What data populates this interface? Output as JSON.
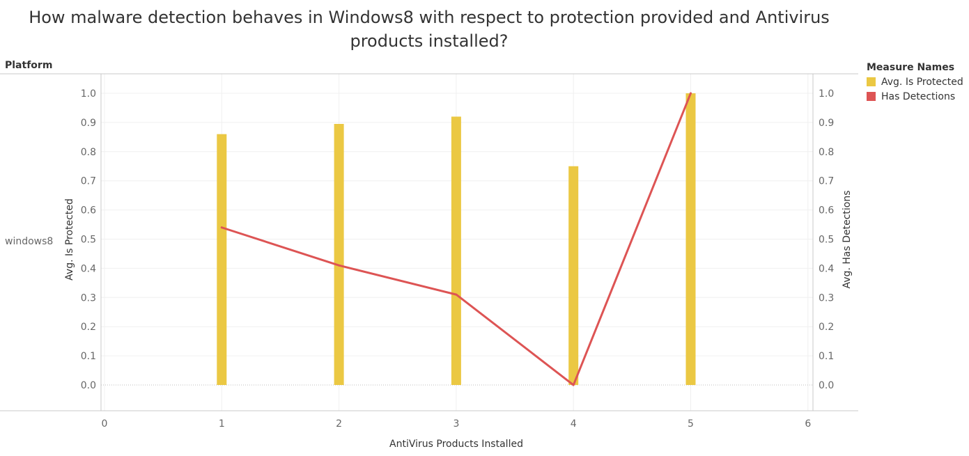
{
  "title_lines": [
    "How malware detection behaves in Windows8 with respect to protection provided and Antivirus",
    "products installed?"
  ],
  "row_header": "Platform",
  "row_value": "windows8",
  "legend": {
    "title": "Measure Names",
    "items": [
      {
        "label": "Avg. Is Protected",
        "color": "#EBC843"
      },
      {
        "label": "Has Detections",
        "color": "#DD5454"
      }
    ]
  },
  "chart_data": {
    "type": "bar",
    "title": "How malware detection behaves in Windows8 with respect to protection provided and Antivirus products installed?",
    "xlabel": "AntiVirus Products Installed",
    "ylabel_left": "Avg. Is Protected",
    "ylabel_right": "Avg. Has Detections",
    "xlim": [
      0,
      6
    ],
    "ylim": [
      0,
      1.0
    ],
    "x_ticks": [
      "0",
      "1",
      "2",
      "3",
      "4",
      "5",
      "6"
    ],
    "y_ticks": [
      "0.0",
      "0.1",
      "0.2",
      "0.3",
      "0.4",
      "0.5",
      "0.6",
      "0.7",
      "0.8",
      "0.9",
      "1.0"
    ],
    "x": [
      1,
      2,
      3,
      4,
      5
    ],
    "series": [
      {
        "name": "Avg. Is Protected",
        "type": "bar",
        "axis": "left",
        "color": "#EBC843",
        "values": [
          0.86,
          0.895,
          0.92,
          0.75,
          1.0
        ]
      },
      {
        "name": "Has Detections",
        "type": "line",
        "axis": "right",
        "color": "#DD5454",
        "values": [
          0.54,
          0.41,
          0.31,
          0.0,
          1.0
        ]
      }
    ],
    "grid": true,
    "legend_position": "right"
  }
}
